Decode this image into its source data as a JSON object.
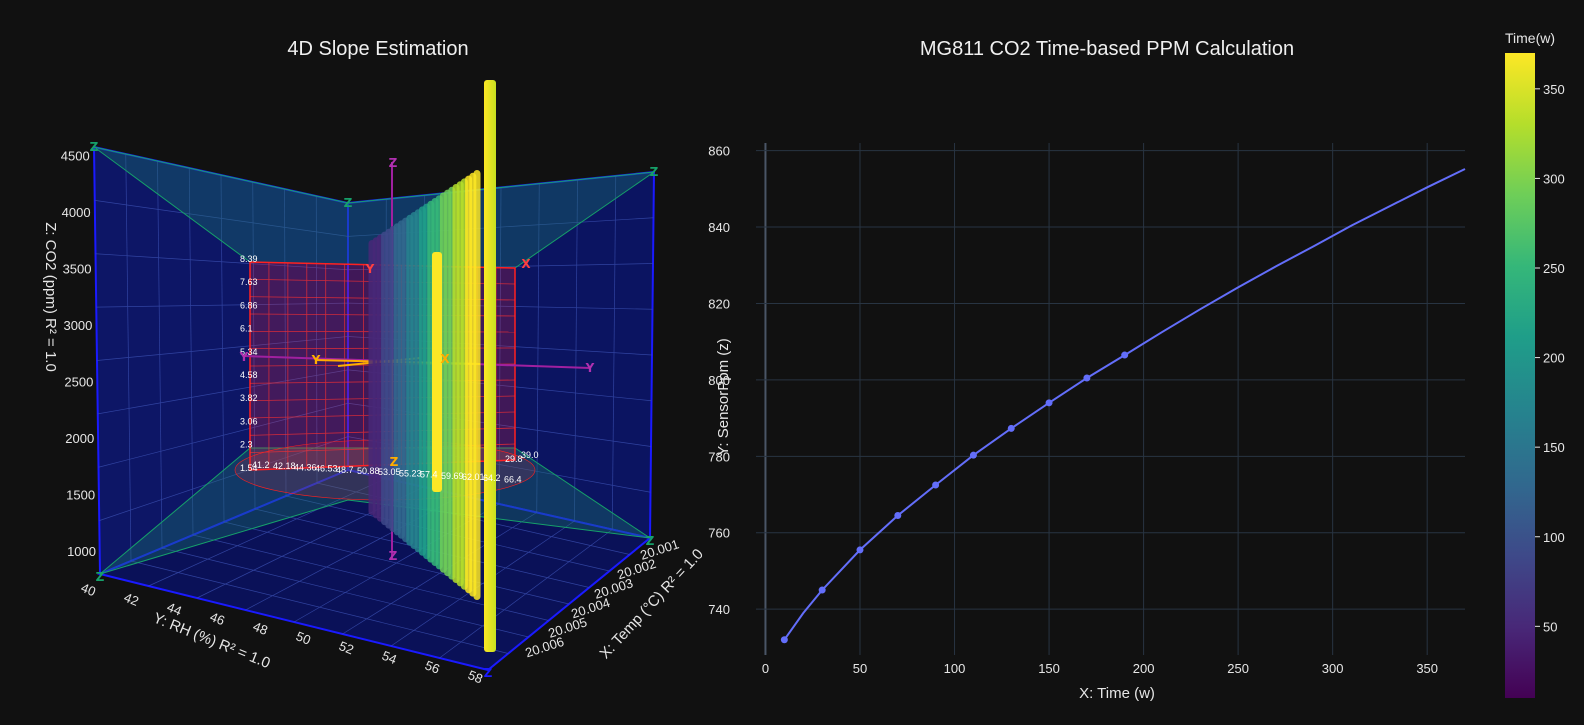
{
  "colors": {
    "background": "#111111",
    "panel_3d": "#0c1260",
    "grid": "#283442",
    "line": "#636efa",
    "plane_red": "#ff2020",
    "plane_green": "#16a06a",
    "axis_blue": "#1a1aff"
  },
  "chart_data": [
    {
      "type": "scatter3d",
      "title": "4D Slope Estimation",
      "xlabel": "X: Temp (°C) R² = 1.0",
      "ylabel": "Y: RH (%) R² = 1.0",
      "zlabel": "Z: CO2 (ppm) R² = 1.0",
      "x_ticks": [
        "20.001",
        "20.002",
        "20.003",
        "20.004",
        "20.005",
        "20.006"
      ],
      "y_ticks": [
        "40",
        "42",
        "44",
        "46",
        "48",
        "50",
        "52",
        "54",
        "56",
        "58"
      ],
      "z_ticks": [
        "1000",
        "1500",
        "2000",
        "2500",
        "3000",
        "3500",
        "4000",
        "4500"
      ],
      "plane_left_labels": [
        "8.39",
        "7.63",
        "6.86",
        "6.1",
        "5.34",
        "4.58",
        "3.82",
        "3.06",
        "2.3",
        "1.54"
      ],
      "plane_bottom_labels": [
        "41.2",
        "42.18",
        "44.36",
        "46.53",
        "48.7",
        "50.88",
        "53.05",
        "55.23",
        "57.4",
        "59.69",
        "62.01",
        "64.2",
        "66.4"
      ],
      "plane_right_labels": [
        "29.8",
        "39.0"
      ],
      "axis_markers": {
        "red_plane": [
          "Y",
          "X"
        ],
        "purple": [
          "Z",
          "Z",
          "Y",
          "Y"
        ],
        "green": [
          "Z",
          "Z",
          "Z",
          "Z",
          "Z",
          "Z"
        ],
        "orange": [
          "Y",
          "X",
          "Z"
        ]
      },
      "grid": true
    },
    {
      "type": "line",
      "title": "MG811 CO2 Time-based PPM Calculation",
      "xlabel": "X: Time (w)",
      "ylabel": "Y: SensorPpm (z)",
      "xlim": [
        -5,
        370
      ],
      "ylim": [
        728,
        862
      ],
      "x_ticks": [
        0,
        50,
        100,
        150,
        200,
        250,
        300,
        350
      ],
      "y_ticks": [
        740,
        760,
        780,
        800,
        820,
        840,
        860
      ],
      "markers": {
        "x": [
          10,
          30,
          50,
          70,
          90,
          110,
          130,
          150,
          170,
          190
        ],
        "y": [
          732,
          745,
          755.5,
          764.5,
          772.5,
          780.3,
          787.3,
          794,
          800.5,
          806.5
        ]
      },
      "curve": {
        "x": [
          10,
          20,
          30,
          50,
          70,
          90,
          110,
          130,
          150,
          170,
          190,
          210,
          230,
          250,
          270,
          290,
          310,
          330,
          350,
          370
        ],
        "y": [
          732,
          739,
          745,
          755.5,
          764.5,
          772.5,
          780.3,
          787.3,
          794,
          800.5,
          806.5,
          812.6,
          818.5,
          824.2,
          829.7,
          835,
          840.4,
          845.4,
          850.4,
          855.2
        ]
      },
      "grid": true
    }
  ],
  "colorbar": {
    "title": "Time(w)",
    "ticks": [
      50,
      100,
      150,
      200,
      250,
      300,
      350
    ],
    "range": [
      10,
      370
    ],
    "colors": [
      "#440154",
      "#482878",
      "#3e4989",
      "#31688e",
      "#26828e",
      "#1f9e89",
      "#35b779",
      "#6ece58",
      "#b5de2b",
      "#fde725"
    ]
  }
}
